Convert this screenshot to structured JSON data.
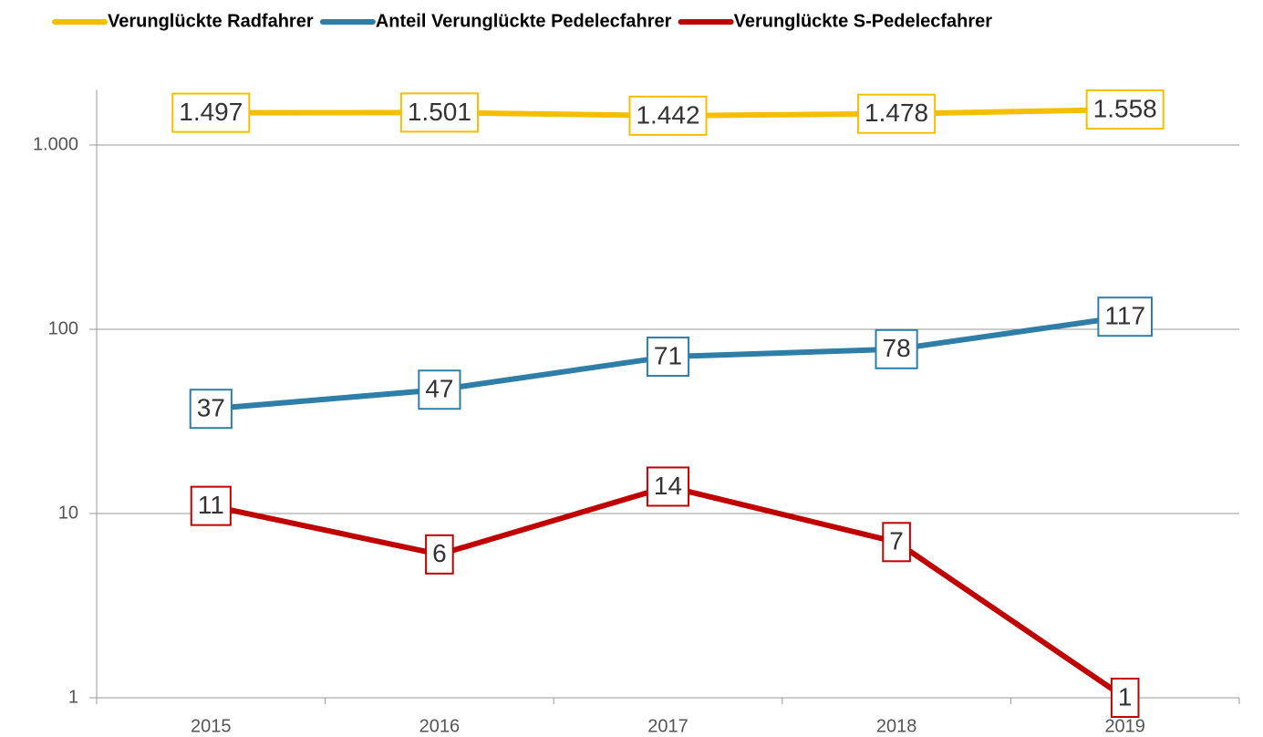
{
  "chart_data": {
    "type": "line",
    "categories": [
      "2015",
      "2016",
      "2017",
      "2018",
      "2019"
    ],
    "series": [
      {
        "name": "Verunglückte Radfahrer",
        "color": "#f5bf00",
        "values": [
          1497,
          1501,
          1442,
          1478,
          1558
        ],
        "value_labels": [
          "1.497",
          "1.501",
          "1.442",
          "1.478",
          "1.558"
        ]
      },
      {
        "name": "Anteil Verunglückte Pedelecfahrer",
        "color": "#2e7ea8",
        "values": [
          37,
          47,
          71,
          78,
          117
        ]
      },
      {
        "name": "Verunglückte S-Pedelecfahrer",
        "color": "#c00000",
        "values": [
          11,
          6,
          14,
          7,
          1
        ]
      }
    ],
    "ylim": [
      1,
      2000
    ],
    "yticks": [
      1,
      10,
      100,
      {
        "value": 1000,
        "label": "1.000"
      }
    ],
    "log_scale": true,
    "grid": true,
    "legend": "top"
  }
}
